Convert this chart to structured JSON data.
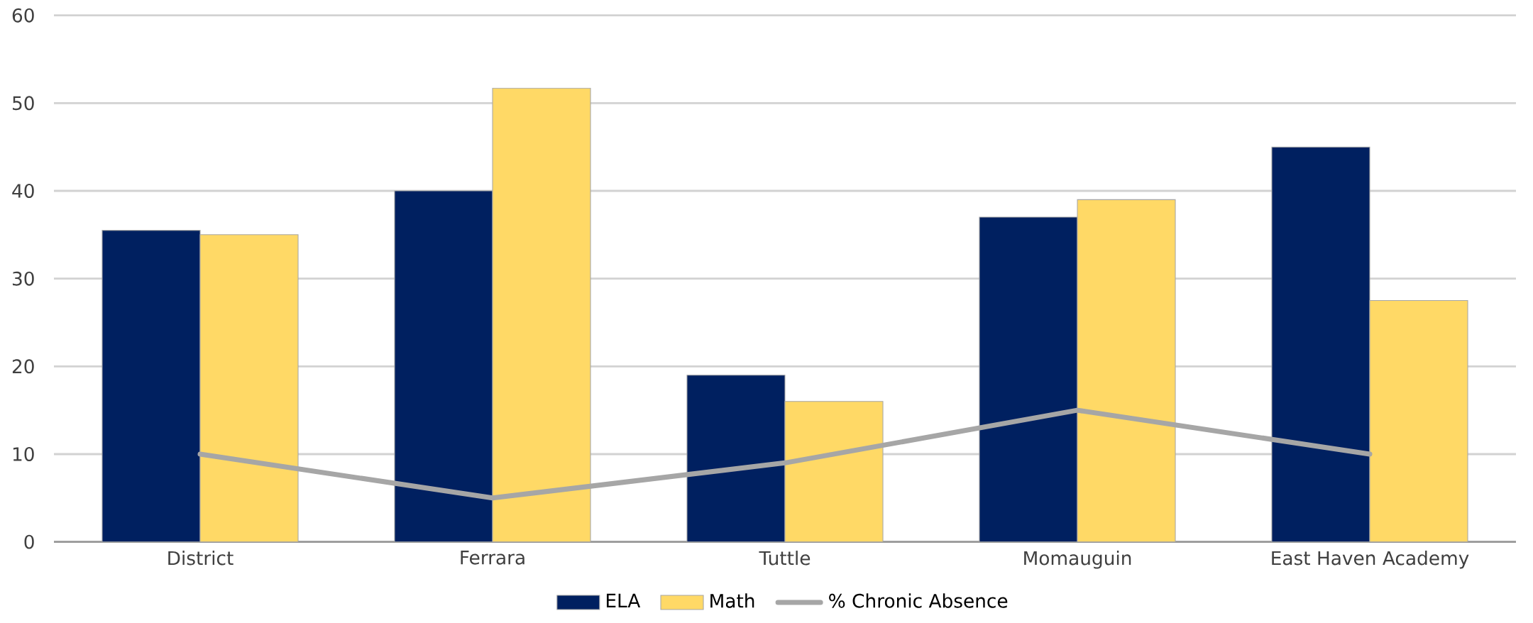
{
  "chart_data": {
    "type": "bar",
    "categories": [
      "District",
      "Ferrara",
      "Tuttle",
      "Momauguin",
      "East Haven Academy"
    ],
    "series": [
      {
        "name": "ELA",
        "color": "#002060",
        "values": [
          35.5,
          40,
          19,
          37,
          45
        ]
      },
      {
        "name": "Math",
        "color": "#ffd966",
        "values": [
          35,
          51.7,
          16,
          39,
          27.5
        ]
      },
      {
        "name": "% Chronic Absence",
        "type": "line",
        "color": "#a6a6a6",
        "values": [
          10,
          5,
          9,
          15,
          10
        ]
      }
    ],
    "ylim": [
      0,
      60
    ],
    "yticks": [
      0,
      10,
      20,
      30,
      40,
      50,
      60
    ],
    "grid": "y",
    "legend": "bottom"
  }
}
